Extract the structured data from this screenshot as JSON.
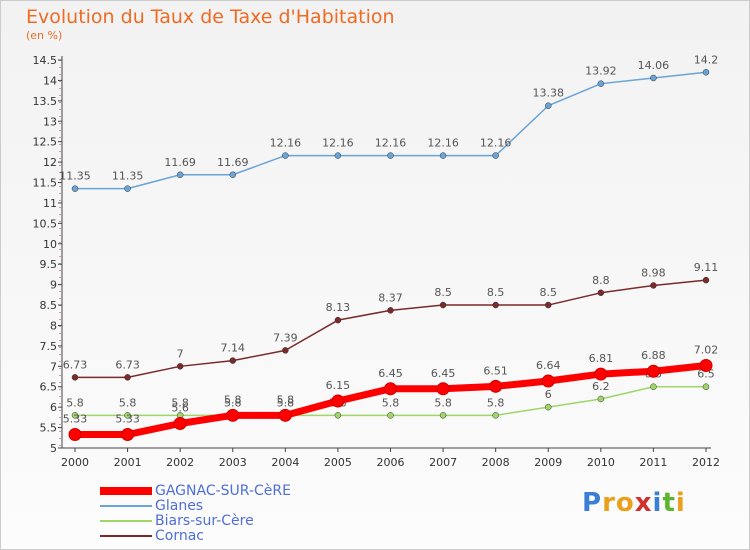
{
  "title": "Evolution du Taux de Taxe d'Habitation",
  "subtitle": "(en %)",
  "logo": {
    "text": "Proxiti",
    "colors": [
      "#3a7fd5",
      "#e9a11b",
      "#e9a11b",
      "#d2302c",
      "#3a7fd5",
      "#5cb531",
      "#e9a11b"
    ]
  },
  "chart_data": {
    "type": "line",
    "title": "Evolution du Taux de Taxe d'Habitation",
    "ylabel": "(en %)",
    "xlabel": "",
    "ylim": [
      5,
      14.5
    ],
    "y_ticks": [
      "5",
      "5.5",
      "6",
      "6.5",
      "7",
      "7.5",
      "8",
      "8.5",
      "9",
      "9.5",
      "10",
      "10.5",
      "11",
      "11.5",
      "12",
      "12.5",
      "13",
      "13.5",
      "14",
      "14.5"
    ],
    "categories": [
      "2000",
      "2001",
      "2002",
      "2003",
      "2004",
      "2005",
      "2006",
      "2007",
      "2008",
      "2009",
      "2010",
      "2011",
      "2012"
    ],
    "grid": false,
    "legend_position": "bottom-left",
    "series": [
      {
        "name": "GAGNAC-SUR-CèRE",
        "color": "#ff0000",
        "highlight": true,
        "values": [
          5.33,
          5.33,
          5.6,
          5.8,
          5.8,
          6.15,
          6.45,
          6.45,
          6.51,
          6.64,
          6.81,
          6.88,
          7.02
        ],
        "labels": [
          "5.33",
          "5.33",
          "5.6",
          "5.8",
          "5.8",
          "6.15",
          "6.45",
          "6.45",
          "6.51",
          "6.64",
          "6.81",
          "6.88",
          "7.02"
        ]
      },
      {
        "name": "Glanes",
        "color": "#6aa3d6",
        "values": [
          11.35,
          11.35,
          11.69,
          11.69,
          12.16,
          12.16,
          12.16,
          12.16,
          12.16,
          13.38,
          13.92,
          14.06,
          14.2
        ],
        "labels": [
          "11.35",
          "11.35",
          "11.69",
          "11.69",
          "12.16",
          "12.16",
          "12.16",
          "12.16",
          "12.16",
          "13.38",
          "13.92",
          "14.06",
          "14.2"
        ]
      },
      {
        "name": "Biars-sur-Cère",
        "color": "#9fd66a",
        "values": [
          5.8,
          5.8,
          5.8,
          5.8,
          5.8,
          5.8,
          5.8,
          5.8,
          5.8,
          6,
          6.2,
          6.5,
          6.5
        ],
        "labels": [
          "5.8",
          "5.8",
          "5.8",
          "5.8",
          "5.8",
          "5.8",
          "5.8",
          "5.8",
          "5.8",
          "6",
          "6.2",
          "6.5",
          "6.5"
        ]
      },
      {
        "name": "Cornac",
        "color": "#7a2a2a",
        "values": [
          6.73,
          6.73,
          7,
          7.14,
          7.39,
          8.13,
          8.37,
          8.5,
          8.5,
          8.5,
          8.8,
          8.98,
          9.11
        ],
        "labels": [
          "6.73",
          "6.73",
          "7",
          "7.14",
          "7.39",
          "8.13",
          "8.37",
          "8.5",
          "8.5",
          "8.5",
          "8.8",
          "8.98",
          "9.11"
        ]
      }
    ]
  }
}
